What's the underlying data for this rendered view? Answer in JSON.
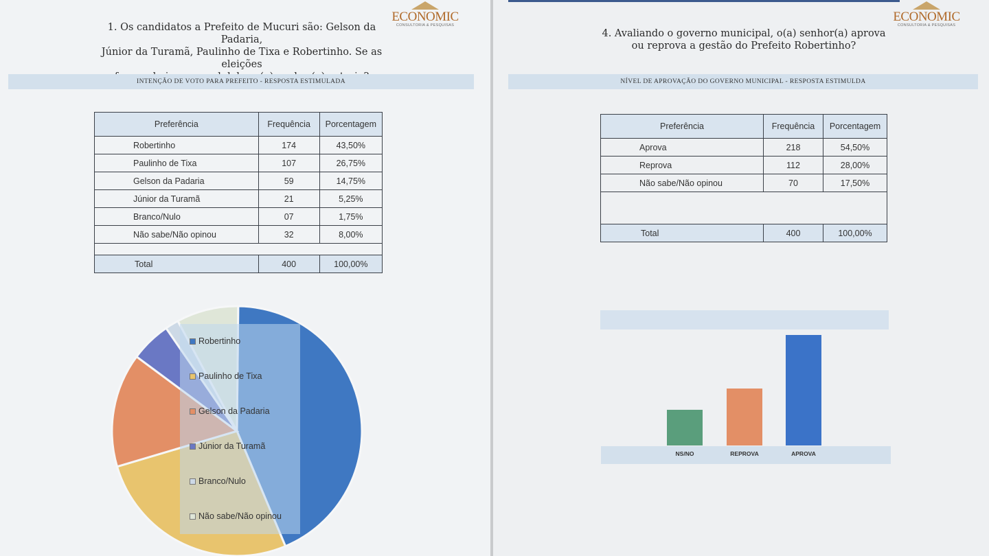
{
  "left": {
    "logo": {
      "name": "ECONOMIC",
      "sub": "CONSULTORIA & PESQUISAS"
    },
    "question": {
      "line1": "1. Os candidatos a Prefeito de Mucuri são: Gelson da Padaria,",
      "line2": "Júnior da Turamã, Paulinho de Tixa e Robertinho. Se as eleições",
      "line3": "fossem hoje, em qual deles o(a) senhor(a) votaria?"
    },
    "section_title": "INTENÇÃO DE VOTO PARA PREFEITO - RESPOSTA ESTIMULADA",
    "table": {
      "headers": [
        "Preferência",
        "Frequência",
        "Porcentagem"
      ],
      "rows": [
        [
          "Robertinho",
          "174",
          "43,50%"
        ],
        [
          "Paulinho de Tixa",
          "107",
          "26,75%"
        ],
        [
          "Gelson da Padaria",
          "59",
          "14,75%"
        ],
        [
          "Júnior da Turamã",
          "21",
          "5,25%"
        ],
        [
          "Branco/Nulo",
          "07",
          "1,75%"
        ],
        [
          "Não sabe/Não opinou",
          "32",
          "8,00%"
        ]
      ],
      "total": [
        "Total",
        "400",
        "100,00%"
      ]
    },
    "chart_data": {
      "type": "pie",
      "categories": [
        "Robertinho",
        "Paulinho de Tixa",
        "Gelson da Padaria",
        "Júnior da Turamã",
        "Branco/Nulo",
        "Não sabe/Não opinou"
      ],
      "values": [
        43.5,
        26.75,
        14.75,
        5.25,
        1.75,
        8.0
      ],
      "colors": [
        "#3f78c2",
        "#e8c46e",
        "#e38f66",
        "#6a78c4",
        "#cdd9e6",
        "#dfe6d8"
      ],
      "legend_placement": "overlay-left"
    }
  },
  "right": {
    "logo": {
      "name": "ECONOMIC",
      "sub": "CONSULTORIA & PESQUISAS"
    },
    "question": {
      "line1": "4. Avaliando o governo municipal, o(a) senhor(a) aprova",
      "line2": "ou reprova a gestão do Prefeito Robertinho?"
    },
    "section_title": "NÍVEL DE APROVAÇÃO DO GOVERNO MUNICIPAL - RESPOSTA ESTIMULDA",
    "table": {
      "headers": [
        "Preferência",
        "Frequência",
        "Porcentagem"
      ],
      "rows": [
        [
          "Aprova",
          "218",
          "54,50%"
        ],
        [
          "Reprova",
          "112",
          "28,00%"
        ],
        [
          "Não sabe/Não opinou",
          "70",
          "17,50%"
        ]
      ],
      "total": [
        "Total",
        "400",
        "100,00%"
      ]
    },
    "chart_data": {
      "type": "bar",
      "categories": [
        "NS/NO",
        "REPROVA",
        "APROVA"
      ],
      "values": [
        70,
        112,
        218
      ],
      "colors": [
        "#5a9e7c",
        "#e38f66",
        "#3b73c8"
      ],
      "grid": false
    }
  }
}
